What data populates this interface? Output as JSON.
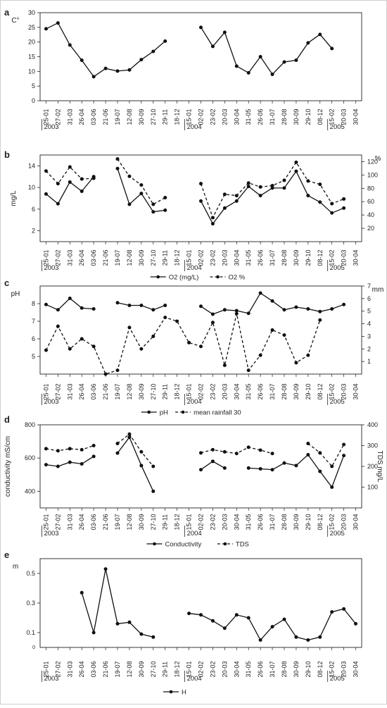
{
  "x_dates": [
    "25-01",
    "27-02",
    "31-03",
    "26-04",
    "03-06",
    "21-06",
    "19-07",
    "12-08",
    "30-09",
    "27-10",
    "29-11",
    "18-12",
    "15-01",
    "02-02",
    "23-02",
    "20-03",
    "30-04",
    "31-05",
    "26-06",
    "31-07",
    "28-08",
    "30-09",
    "29-10",
    "08-12",
    "15-02",
    "20-03",
    "30-04"
  ],
  "years": [
    {
      "label": "2003",
      "index": 0
    },
    {
      "label": "2004",
      "index": 12
    },
    {
      "label": "2005",
      "index": 24
    }
  ],
  "colors": {
    "line": "#111111",
    "axis": "#666666",
    "frame": "#222222"
  },
  "chart_data": [
    {
      "letter": "a",
      "type": "line",
      "ylabel": "C°",
      "ylim": [
        0,
        30
      ],
      "yticks": [
        0,
        5,
        10,
        15,
        20,
        25,
        30
      ],
      "series": [
        {
          "style": "solid",
          "axis": "left",
          "values": [
            24.5,
            26.5,
            19,
            13.8,
            8.2,
            11,
            10.1,
            10.5,
            14,
            16.8,
            20.3,
            null,
            null,
            25,
            18.5,
            23.3,
            11.8,
            9.5,
            15,
            9,
            13.2,
            13.8,
            19.7,
            22.6,
            17.8,
            null,
            null
          ]
        }
      ]
    },
    {
      "letter": "b",
      "type": "line",
      "ylabel": "mg/L",
      "ylabel_right": "%",
      "ylim": [
        0,
        16
      ],
      "yticks": [
        2,
        6,
        10,
        14
      ],
      "ylim_right": [
        0,
        130
      ],
      "yticks_right": [
        20,
        40,
        60,
        80,
        100,
        120
      ],
      "series": [
        {
          "name": "O2 (mg/L)",
          "style": "solid",
          "axis": "left",
          "values": [
            8.8,
            7,
            11,
            9.3,
            12,
            null,
            13.5,
            6.9,
            8.9,
            5.5,
            5.8,
            null,
            null,
            7.5,
            3.3,
            6.2,
            7.5,
            10.2,
            8.5,
            9.9,
            9.9,
            13,
            8.5,
            7.3,
            5.3,
            6.2,
            null
          ]
        },
        {
          "name": "O2 %",
          "style": "dashed",
          "axis": "right",
          "values": [
            106,
            87,
            112,
            94,
            95,
            null,
            124,
            98,
            85,
            56,
            66,
            null,
            null,
            87,
            36,
            71,
            69,
            88,
            82,
            84,
            92,
            119,
            91,
            86,
            57,
            64,
            null
          ]
        }
      ],
      "legend_position": "bottom"
    },
    {
      "letter": "c",
      "type": "line",
      "ylabel": "pH",
      "ylabel_right": "mm",
      "ylim": [
        4,
        9
      ],
      "yticks": [
        5,
        6,
        7,
        8
      ],
      "ylim_right": [
        0,
        7
      ],
      "yticks_right": [
        1,
        2,
        3,
        4,
        5,
        6,
        7
      ],
      "series": [
        {
          "name": "pH",
          "style": "solid",
          "axis": "left",
          "values": [
            7.95,
            7.65,
            8.3,
            7.75,
            7.7,
            null,
            8.05,
            7.9,
            7.9,
            7.65,
            7.9,
            null,
            null,
            7.85,
            7.4,
            7.65,
            7.6,
            7.45,
            8.6,
            8.15,
            7.65,
            7.8,
            7.7,
            7.55,
            7.7,
            7.95,
            null
          ]
        },
        {
          "name": "mean rainfall 30",
          "style": "dashed",
          "axis": "right",
          "values": [
            1.9,
            3.8,
            2,
            2.8,
            2.2,
            0,
            0.3,
            3.7,
            2,
            3,
            4.5,
            4.2,
            2.5,
            2.2,
            4.1,
            0.7,
            4.8,
            0.3,
            1.5,
            3.5,
            3.1,
            0.9,
            1.5,
            4.3,
            null,
            null,
            null
          ]
        }
      ],
      "legend_position": "bottom"
    },
    {
      "letter": "d",
      "type": "line",
      "ylabel": "conductivity mS/cm",
      "ylabel_right": "TDS mg/L",
      "ylim": [
        300,
        800
      ],
      "yticks": [
        400,
        600,
        800
      ],
      "ylim_right": [
        0,
        400
      ],
      "yticks_right": [
        100,
        200,
        300,
        400
      ],
      "series": [
        {
          "name": "Conductivity",
          "style": "solid",
          "axis": "left",
          "values": [
            560,
            550,
            575,
            565,
            610,
            null,
            630,
            725,
            555,
            400,
            null,
            null,
            null,
            530,
            580,
            540,
            null,
            540,
            535,
            530,
            570,
            555,
            620,
            520,
            425,
            615,
            null
          ]
        },
        {
          "name": "TDS",
          "style": "dashed",
          "axis": "right",
          "values": [
            285,
            275,
            285,
            280,
            300,
            null,
            310,
            355,
            270,
            200,
            null,
            null,
            null,
            265,
            280,
            270,
            262,
            292,
            278,
            262,
            null,
            null,
            310,
            265,
            200,
            305,
            null
          ]
        }
      ],
      "legend_position": "bottom"
    },
    {
      "letter": "e",
      "type": "line",
      "ylabel": "m",
      "ylim": [
        0,
        0.6
      ],
      "yticks": [
        0.1,
        0.3,
        0.5
      ],
      "tick_labels": [
        "0.1",
        "0.3",
        "0.5"
      ],
      "zero_label": "0",
      "series": [
        {
          "name": "H",
          "style": "solid",
          "axis": "left",
          "values": [
            null,
            null,
            null,
            0.37,
            0.1,
            0.53,
            0.16,
            0.17,
            0.09,
            0.07,
            null,
            null,
            0.23,
            0.22,
            0.18,
            0.13,
            0.22,
            0.2,
            0.05,
            0.14,
            0.19,
            0.07,
            0.05,
            0.07,
            0.24,
            0.26,
            0.16
          ]
        }
      ],
      "legend_position": "bottom"
    }
  ]
}
